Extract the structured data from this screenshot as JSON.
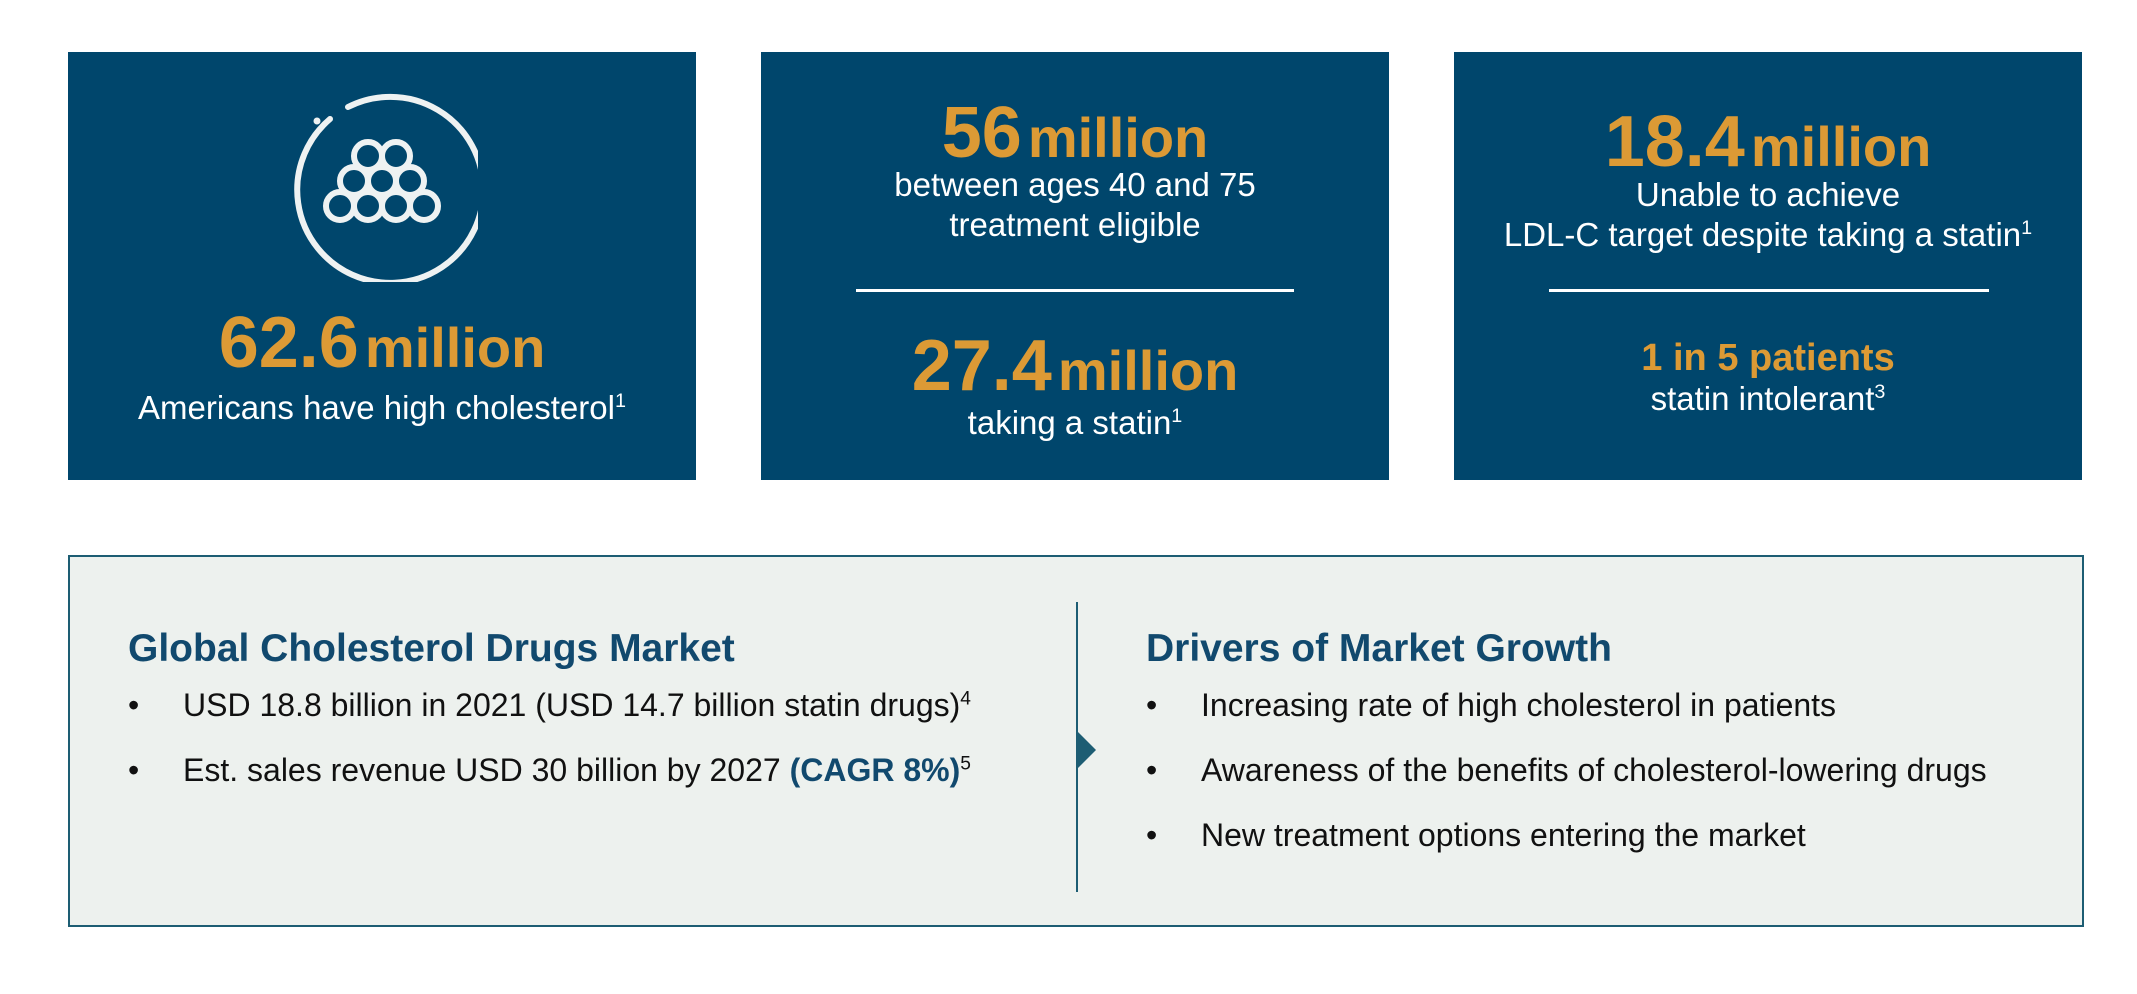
{
  "stats": [
    {
      "icon": "cholesterol-icon",
      "number": "62.6",
      "unit": "million",
      "description": "Americans have high cholesterol",
      "footnote": "1"
    },
    {
      "top": {
        "number": "56",
        "unit": "million",
        "line1": "between ages 40 and 75",
        "line2": "treatment eligible"
      },
      "bottom": {
        "number": "27.4",
        "unit": "million",
        "description": "taking a statin",
        "footnote": "1"
      }
    },
    {
      "top": {
        "number": "18.4",
        "unit": "million",
        "line1": "Unable to achieve",
        "line2": "LDL-C target despite taking a statin",
        "footnote": "1"
      },
      "bottom": {
        "highlight": "1 in 5 patients",
        "description": "statin intolerant",
        "footnote": "3"
      }
    }
  ],
  "market": {
    "heading": "Global Cholesterol Drugs Market",
    "bullets": [
      {
        "text": "USD 18.8 billion in 2021 (USD 14.7 billion statin drugs)",
        "footnote": "4"
      },
      {
        "text": "Est. sales revenue USD 30 billion by 2027 ",
        "highlight": "(CAGR 8%)",
        "footnote": "5"
      }
    ]
  },
  "drivers": {
    "heading": "Drivers of Market Growth",
    "bullets": [
      "Increasing rate of high cholesterol in patients",
      "Awareness of the benefits of cholesterol-lowering drugs",
      "New treatment options entering the market"
    ]
  },
  "bullet_symbol": "•",
  "colors": {
    "card_bg": "#00466c",
    "accent_orange": "#dc9a35",
    "panel_bg": "#edf1ee",
    "panel_border": "#1d5d73",
    "heading_blue": "#11496e"
  }
}
